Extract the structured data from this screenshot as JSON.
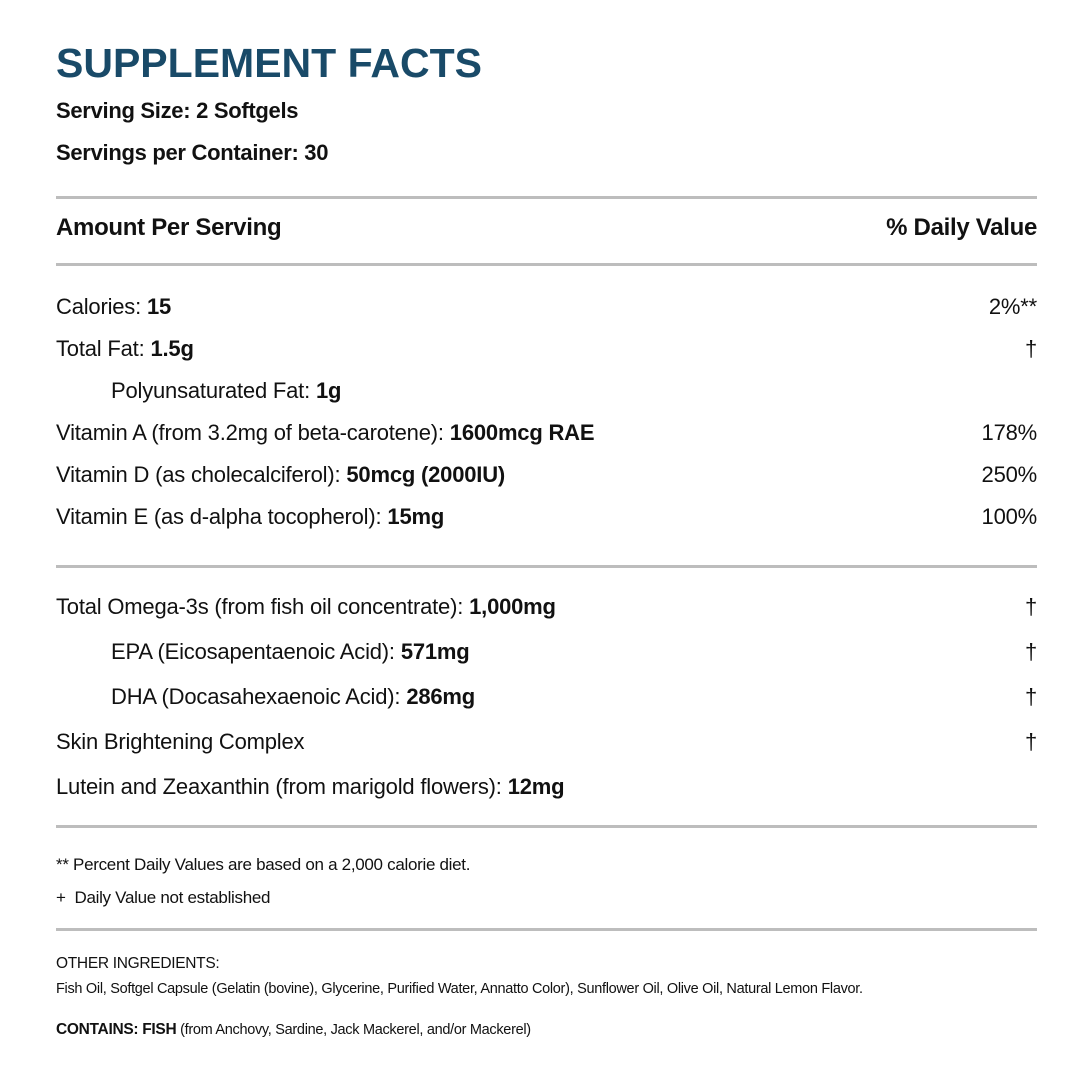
{
  "title": "SUPPLEMENT FACTS",
  "serving_size": "Serving Size: 2 Softgels",
  "servings_per_container": "Servings per Container: 30",
  "header": {
    "amount": "Amount Per Serving",
    "daily_value": "% Daily Value"
  },
  "sections": [
    {
      "rows": [
        {
          "label": "Calories:",
          "amount": "15",
          "dv": "2%**"
        },
        {
          "label": "Total Fat:",
          "amount": "1.5g",
          "dv": "†"
        },
        {
          "label": "Polyunsaturated Fat:",
          "amount": "1g",
          "indent": true
        },
        {
          "label": "Vitamin A (from 3.2mg of beta-carotene):",
          "amount": "1600mcg RAE",
          "dv": "178%"
        },
        {
          "label": "Vitamin D (as cholecalciferol):",
          "amount": "50mcg (2000IU)",
          "dv": "250%"
        },
        {
          "label": "Vitamin E (as d-alpha tocopherol):",
          "amount": "15mg",
          "dv": "100%"
        }
      ]
    },
    {
      "rows": [
        {
          "label": "Total Omega-3s (from fish oil concentrate):",
          "amount": "1,000mg",
          "dv": "†"
        },
        {
          "label": "EPA (Eicosapentaenoic Acid):",
          "amount": "571mg",
          "dv": "†",
          "indent": true
        },
        {
          "label": "DHA (Docasahexaenoic Acid):",
          "amount": "286mg",
          "dv": "†",
          "indent": true
        },
        {
          "label": "Skin Brightening Complex",
          "dv": "†"
        },
        {
          "label": "Lutein and Zeaxanthin (from marigold flowers):",
          "amount": "12mg"
        }
      ]
    }
  ],
  "footnotes": [
    "** Percent Daily Values are based on a 2,000 calorie diet.",
    "+  Daily Value not established"
  ],
  "other_ingredients": {
    "heading": "OTHER INGREDIENTS:",
    "text": "Fish Oil, Softgel Capsule (Gelatin (bovine), Glycerine, Purified Water, Annatto Color), Sunflower Oil, Olive Oil, Natural Lemon Flavor."
  },
  "contains": {
    "label": "CONTAINS: FISH",
    "text": "(from Anchovy, Sardine, Jack Mackerel, and/or Mackerel)"
  }
}
